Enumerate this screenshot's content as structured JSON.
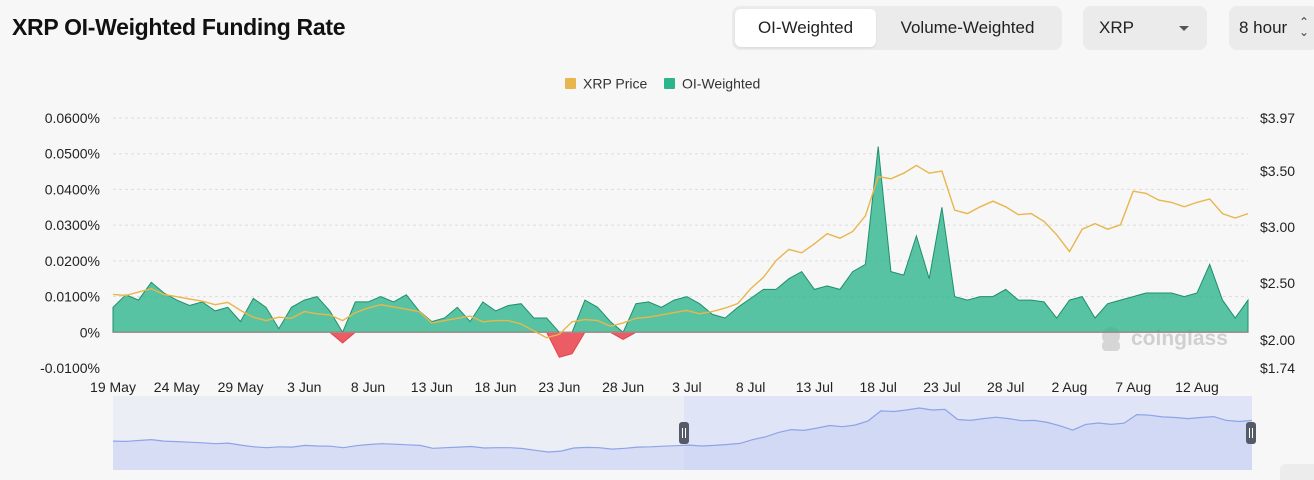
{
  "header": {
    "title": "XRP OI-Weighted Funding Rate",
    "tabs": [
      "OI-Weighted",
      "Volume-Weighted"
    ],
    "active_tab": "OI-Weighted",
    "coin_select": "XRP",
    "interval_select": "8 hour"
  },
  "watermark": "coinglass",
  "colors": {
    "price": "#e8b64c",
    "positive": "#2ab58a",
    "negative": "#e9414b",
    "navigator": "#8ea4e8"
  },
  "chart_data": {
    "type": "area",
    "legend": [
      {
        "name": "XRP Price",
        "color": "#e8b64c"
      },
      {
        "name": "OI-Weighted",
        "color": "#2ab58a"
      }
    ],
    "legend_position": "top-center",
    "x_labels": [
      "19 May",
      "24 May",
      "29 May",
      "3 Jun",
      "8 Jun",
      "13 Jun",
      "18 Jun",
      "23 Jun",
      "28 Jun",
      "3 Jul",
      "8 Jul",
      "13 Jul",
      "18 Jul",
      "23 Jul",
      "28 Jul",
      "2 Aug",
      "7 Aug",
      "12 Aug"
    ],
    "y_left_labels": [
      "0.0600%",
      "0.0500%",
      "0.0400%",
      "0.0300%",
      "0.0200%",
      "0.0100%",
      "0%",
      "-0.0100%"
    ],
    "y_left_range": [
      -0.01,
      0.06
    ],
    "y_right_labels": [
      "$3.97",
      "$3.50",
      "$3.00",
      "$2.50",
      "$2.00",
      "$1.74"
    ],
    "y_right_range": [
      1.74,
      3.97
    ],
    "grid": true,
    "series": [
      {
        "name": "OI-Weighted",
        "unit": "%",
        "points": [
          [
            "19 May",
            0.007
          ],
          [
            "20 May",
            0.0105
          ],
          [
            "21 May",
            0.009
          ],
          [
            "22 May",
            0.014
          ],
          [
            "23 May",
            0.011
          ],
          [
            "24 May",
            0.009
          ],
          [
            "25 May",
            0.0075
          ],
          [
            "26 May",
            0.0085
          ],
          [
            "27 May",
            0.006
          ],
          [
            "28 May",
            0.007
          ],
          [
            "29 May",
            0.003
          ],
          [
            "30 May",
            0.0095
          ],
          [
            "31 May",
            0.007
          ],
          [
            "1 Jun",
            0.001
          ],
          [
            "2 Jun",
            0.007
          ],
          [
            "3 Jun",
            0.009
          ],
          [
            "4 Jun",
            0.01
          ],
          [
            "5 Jun",
            0.006
          ],
          [
            "6 Jun",
            -0.003
          ],
          [
            "7 Jun",
            0.0085
          ],
          [
            "8 Jun",
            0.0085
          ],
          [
            "9 Jun",
            0.01
          ],
          [
            "10 Jun",
            0.0085
          ],
          [
            "11 Jun",
            0.0105
          ],
          [
            "12 Jun",
            0.006
          ],
          [
            "13 Jun",
            0.003
          ],
          [
            "14 Jun",
            0.004
          ],
          [
            "15 Jun",
            0.007
          ],
          [
            "16 Jun",
            0.003
          ],
          [
            "17 Jun",
            0.0085
          ],
          [
            "18 Jun",
            0.006
          ],
          [
            "19 Jun",
            0.0075
          ],
          [
            "20 Jun",
            0.008
          ],
          [
            "21 Jun",
            0.004
          ],
          [
            "22 Jun",
            0.004
          ],
          [
            "23 Jun",
            -0.007
          ],
          [
            "24 Jun",
            -0.006
          ],
          [
            "25 Jun",
            0.009
          ],
          [
            "26 Jun",
            0.007
          ],
          [
            "27 Jun",
            0.003
          ],
          [
            "28 Jun",
            -0.002
          ],
          [
            "29 Jun",
            0.008
          ],
          [
            "30 Jun",
            0.0085
          ],
          [
            "1 Jul",
            0.007
          ],
          [
            "2 Jul",
            0.009
          ],
          [
            "3 Jul",
            0.01
          ],
          [
            "4 Jul",
            0.008
          ],
          [
            "5 Jul",
            0.005
          ],
          [
            "6 Jul",
            0.004
          ],
          [
            "7 Jul",
            0.007
          ],
          [
            "8 Jul",
            0.0095
          ],
          [
            "9 Jul",
            0.012
          ],
          [
            "10 Jul",
            0.012
          ],
          [
            "11 Jul",
            0.015
          ],
          [
            "12 Jul",
            0.017
          ],
          [
            "13 Jul",
            0.012
          ],
          [
            "14 Jul",
            0.013
          ],
          [
            "15 Jul",
            0.012
          ],
          [
            "16 Jul",
            0.017
          ],
          [
            "17 Jul",
            0.019
          ],
          [
            "18 Jul",
            0.052
          ],
          [
            "19 Jul",
            0.017
          ],
          [
            "20 Jul",
            0.016
          ],
          [
            "21 Jul",
            0.027
          ],
          [
            "22 Jul",
            0.015
          ],
          [
            "23 Jul",
            0.035
          ],
          [
            "24 Jul",
            0.01
          ],
          [
            "25 Jul",
            0.009
          ],
          [
            "26 Jul",
            0.01
          ],
          [
            "27 Jul",
            0.01
          ],
          [
            "28 Jul",
            0.012
          ],
          [
            "29 Jul",
            0.009
          ],
          [
            "30 Jul",
            0.009
          ],
          [
            "31 Jul",
            0.0085
          ],
          [
            "1 Aug",
            0.004
          ],
          [
            "2 Aug",
            0.009
          ],
          [
            "3 Aug",
            0.01
          ],
          [
            "4 Aug",
            0.004
          ],
          [
            "5 Aug",
            0.008
          ],
          [
            "6 Aug",
            0.009
          ],
          [
            "7 Aug",
            0.01
          ],
          [
            "8 Aug",
            0.011
          ],
          [
            "9 Aug",
            0.011
          ],
          [
            "10 Aug",
            0.011
          ],
          [
            "11 Aug",
            0.01
          ],
          [
            "12 Aug",
            0.011
          ],
          [
            "13 Aug",
            0.019
          ],
          [
            "14 Aug",
            0.009
          ],
          [
            "15 Aug",
            0.004
          ],
          [
            "16 Aug",
            0.009
          ]
        ]
      },
      {
        "name": "XRP Price",
        "unit": "$",
        "points": [
          [
            "19 May",
            2.4
          ],
          [
            "20 May",
            2.39
          ],
          [
            "21 May",
            2.42
          ],
          [
            "22 May",
            2.45
          ],
          [
            "23 May",
            2.4
          ],
          [
            "24 May",
            2.38
          ],
          [
            "25 May",
            2.36
          ],
          [
            "26 May",
            2.34
          ],
          [
            "27 May",
            2.31
          ],
          [
            "28 May",
            2.33
          ],
          [
            "29 May",
            2.26
          ],
          [
            "30 May",
            2.2
          ],
          [
            "31 May",
            2.17
          ],
          [
            "1 Jun",
            2.2
          ],
          [
            "2 Jun",
            2.19
          ],
          [
            "3 Jun",
            2.25
          ],
          [
            "4 Jun",
            2.23
          ],
          [
            "5 Jun",
            2.22
          ],
          [
            "6 Jun",
            2.17
          ],
          [
            "7 Jun",
            2.24
          ],
          [
            "8 Jun",
            2.28
          ],
          [
            "9 Jun",
            2.31
          ],
          [
            "10 Jun",
            2.29
          ],
          [
            "11 Jun",
            2.27
          ],
          [
            "12 Jun",
            2.25
          ],
          [
            "13 Jun",
            2.15
          ],
          [
            "14 Jun",
            2.17
          ],
          [
            "15 Jun",
            2.19
          ],
          [
            "16 Jun",
            2.21
          ],
          [
            "17 Jun",
            2.16
          ],
          [
            "18 Jun",
            2.17
          ],
          [
            "19 Jun",
            2.17
          ],
          [
            "20 Jun",
            2.14
          ],
          [
            "21 Jun",
            2.08
          ],
          [
            "22 Jun",
            2.02
          ],
          [
            "23 Jun",
            2.05
          ],
          [
            "24 Jun",
            2.16
          ],
          [
            "25 Jun",
            2.18
          ],
          [
            "26 Jun",
            2.17
          ],
          [
            "27 Jun",
            2.12
          ],
          [
            "28 Jun",
            2.15
          ],
          [
            "29 Jun",
            2.19
          ],
          [
            "30 Jun",
            2.2
          ],
          [
            "1 Jul",
            2.22
          ],
          [
            "2 Jul",
            2.24
          ],
          [
            "3 Jul",
            2.26
          ],
          [
            "4 Jul",
            2.23
          ],
          [
            "5 Jul",
            2.25
          ],
          [
            "6 Jul",
            2.28
          ],
          [
            "7 Jul",
            2.32
          ],
          [
            "8 Jul",
            2.45
          ],
          [
            "9 Jul",
            2.55
          ],
          [
            "10 Jul",
            2.7
          ],
          [
            "11 Jul",
            2.8
          ],
          [
            "12 Jul",
            2.77
          ],
          [
            "13 Jul",
            2.85
          ],
          [
            "14 Jul",
            2.94
          ],
          [
            "15 Jul",
            2.9
          ],
          [
            "16 Jul",
            2.96
          ],
          [
            "17 Jul",
            3.1
          ],
          [
            "18 Jul",
            3.45
          ],
          [
            "19 Jul",
            3.43
          ],
          [
            "20 Jul",
            3.48
          ],
          [
            "21 Jul",
            3.55
          ],
          [
            "22 Jul",
            3.48
          ],
          [
            "23 Jul",
            3.5
          ],
          [
            "24 Jul",
            3.15
          ],
          [
            "25 Jul",
            3.12
          ],
          [
            "26 Jul",
            3.18
          ],
          [
            "27 Jul",
            3.23
          ],
          [
            "28 Jul",
            3.18
          ],
          [
            "29 Jul",
            3.11
          ],
          [
            "30 Jul",
            3.12
          ],
          [
            "31 Jul",
            3.05
          ],
          [
            "1 Aug",
            2.93
          ],
          [
            "2 Aug",
            2.78
          ],
          [
            "3 Aug",
            2.98
          ],
          [
            "4 Aug",
            3.03
          ],
          [
            "5 Aug",
            2.98
          ],
          [
            "6 Aug",
            3.02
          ],
          [
            "7 Aug",
            3.32
          ],
          [
            "8 Aug",
            3.3
          ],
          [
            "9 Aug",
            3.24
          ],
          [
            "10 Aug",
            3.22
          ],
          [
            "11 Aug",
            3.18
          ],
          [
            "12 Aug",
            3.22
          ],
          [
            "13 Aug",
            3.25
          ],
          [
            "14 Aug",
            3.12
          ],
          [
            "15 Aug",
            3.08
          ],
          [
            "16 Aug",
            3.12
          ]
        ]
      }
    ]
  }
}
